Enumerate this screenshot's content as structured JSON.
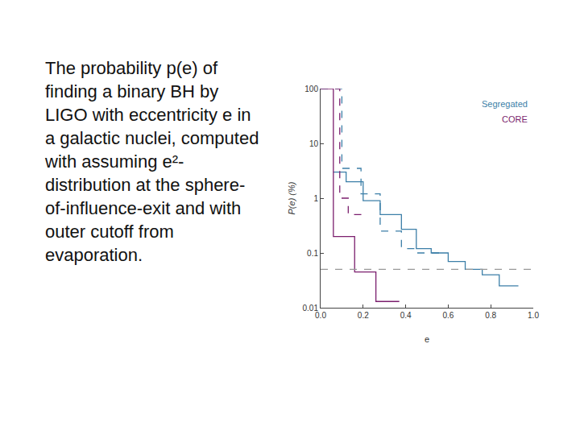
{
  "caption": "The probability p(e) of finding a binary BH by LIGO with eccentricity e in a galactic nuclei, computed with assuming e²-distribution at the sphere-of-influence-exit and with outer cutoff from evaporation.",
  "chart_data": {
    "type": "step",
    "x_label": "e",
    "y_label": "P(e) (%)",
    "log": "y",
    "legend": "top right",
    "grid": false,
    "xlim": [
      0,
      1
    ],
    "xticks": [
      {
        "value": 0,
        "label": "0.0"
      },
      {
        "value": 0.2,
        "label": "0.2"
      },
      {
        "value": 0.4,
        "label": "0.4"
      },
      {
        "value": 0.6,
        "label": "0.6"
      },
      {
        "value": 0.8,
        "label": "0.8"
      },
      {
        "value": 1,
        "label": "1.0"
      }
    ],
    "ylim": [
      0.01,
      100
    ],
    "yticks": [
      0.01,
      0.1,
      1,
      10,
      100
    ],
    "series": [
      {
        "name": "Segregated",
        "color": "#3c7fa8",
        "line_style": "solid",
        "x": [
          0.06,
          0.12,
          0.2,
          0.28,
          0.38,
          0.45,
          0.52,
          0.6,
          0.68,
          0.76,
          0.84,
          0.93
        ],
        "values": [
          3,
          2,
          0.9,
          0.5,
          0.27,
          0.12,
          0.1,
          0.07,
          0.05,
          0.04,
          0.025,
          0.025
        ]
      },
      {
        "name": "CORE",
        "color": "#7b1f6e",
        "line_style": "solid",
        "x": [
          0,
          0.06,
          0.16,
          0.26,
          0.37
        ],
        "values": [
          100,
          0.2,
          0.045,
          0.013,
          0.013
        ]
      },
      {
        "color": "#3c7fa8",
        "line_style": "dashed",
        "x": [
          0,
          0.1,
          0.19,
          0.28,
          0.38,
          0.45,
          0.57
        ],
        "values": [
          100,
          3.5,
          1.2,
          0.25,
          0.12,
          0.1,
          0.1
        ]
      },
      {
        "color": "#7b1f6e",
        "line_style": "dashed",
        "x": [
          0,
          0.09,
          0.13,
          0.2
        ],
        "values": [
          100,
          1,
          0.5,
          0.5
        ]
      },
      {
        "color": "#999999",
        "line_style": "dashed",
        "x": [
          0,
          1
        ],
        "values": [
          0.05,
          0.05
        ]
      }
    ]
  }
}
